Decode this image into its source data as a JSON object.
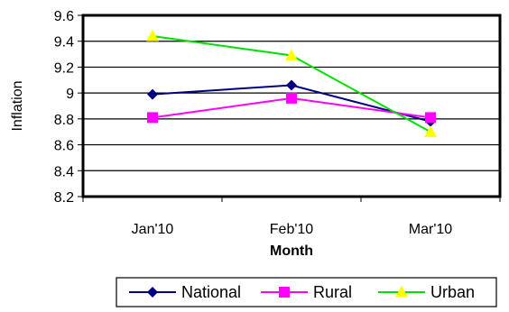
{
  "chart_data": {
    "type": "line",
    "categories": [
      "Jan'10",
      "Feb'10",
      "Mar'10"
    ],
    "series": [
      {
        "name": "National",
        "values": [
          8.99,
          9.06,
          8.78
        ],
        "color": "#000080",
        "marker": "diamond"
      },
      {
        "name": "Rural",
        "values": [
          8.81,
          8.96,
          8.81
        ],
        "color": "#ff00ff",
        "marker": "square"
      },
      {
        "name": "Urban",
        "values": [
          9.44,
          9.29,
          8.7
        ],
        "color": "#00e000",
        "marker": "triangle"
      }
    ],
    "marker_colors": {
      "triangle": "#ffff00"
    },
    "title": "",
    "xlabel": "Month",
    "ylabel": "Inflation",
    "ylim": [
      8.2,
      9.6
    ],
    "yticks": [
      "8.2",
      "8.4",
      "8.6",
      "8.8",
      "9",
      "9.2",
      "9.4",
      "9.6"
    ],
    "grid": true,
    "legend_position": "bottom-right"
  }
}
